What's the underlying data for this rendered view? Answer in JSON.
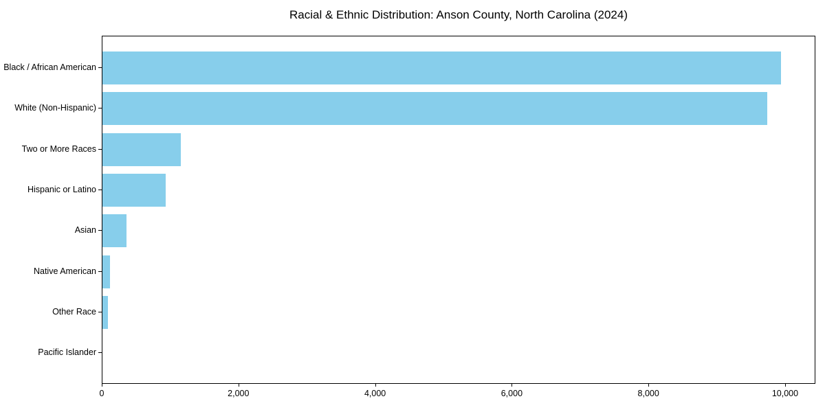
{
  "chart_data": {
    "type": "bar",
    "orientation": "horizontal",
    "title": "Racial & Ethnic Distribution: Anson County, North Carolina (2024)",
    "categories": [
      "Black / African American",
      "White (Non-Hispanic)",
      "Two or More Races",
      "Hispanic or Latino",
      "Asian",
      "Native American",
      "Other Race",
      "Pacific Islander"
    ],
    "values": [
      9950,
      9750,
      1150,
      930,
      350,
      110,
      85,
      0
    ],
    "xlabel": "",
    "ylabel": "",
    "xlim": [
      0,
      10443
    ],
    "x_ticks": [
      0,
      2000,
      4000,
      6000,
      8000,
      10000
    ],
    "x_tick_labels": [
      "0",
      "2,000",
      "4,000",
      "6,000",
      "8,000",
      "10,000"
    ],
    "grid": false,
    "legend": "none",
    "bar_color": "#87CEEB",
    "axis_color": "#000000",
    "text_color": "#000000",
    "background_color": "#FFFFFF"
  }
}
